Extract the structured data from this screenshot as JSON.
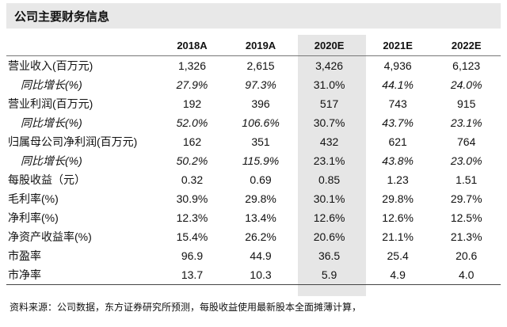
{
  "title": "公司主要财务信息",
  "columns": [
    "",
    "2018A",
    "2019A",
    "2020E",
    "2021E",
    "2022E"
  ],
  "rows": [
    {
      "label": "营业收入(百万元)",
      "values": [
        "1,326",
        "2,615",
        "3,426",
        "4,936",
        "6,123"
      ],
      "sub": false
    },
    {
      "label": "同比增长(%)",
      "values": [
        "27.9%",
        "97.3%",
        "31.0%",
        "44.1%",
        "24.0%"
      ],
      "sub": true
    },
    {
      "label": "营业利润(百万元)",
      "values": [
        "192",
        "396",
        "517",
        "743",
        "915"
      ],
      "sub": false
    },
    {
      "label": "同比增长(%)",
      "values": [
        "52.0%",
        "106.6%",
        "30.7%",
        "43.7%",
        "23.1%"
      ],
      "sub": true
    },
    {
      "label": "归属母公司净利润(百万元)",
      "values": [
        "162",
        "351",
        "432",
        "621",
        "764"
      ],
      "sub": false
    },
    {
      "label": "同比增长(%)",
      "values": [
        "50.2%",
        "115.9%",
        "23.1%",
        "43.8%",
        "23.0%"
      ],
      "sub": true
    },
    {
      "label": "每股收益（元）",
      "values": [
        "0.32",
        "0.69",
        "0.85",
        "1.23",
        "1.51"
      ],
      "sub": false
    },
    {
      "label": "毛利率(%)",
      "values": [
        "30.9%",
        "29.8%",
        "30.1%",
        "29.8%",
        "29.7%"
      ],
      "sub": false
    },
    {
      "label": "净利率(%)",
      "values": [
        "12.3%",
        "13.4%",
        "12.6%",
        "12.6%",
        "12.5%"
      ],
      "sub": false
    },
    {
      "label": "净资产收益率(%)",
      "values": [
        "15.4%",
        "26.2%",
        "20.6%",
        "21.1%",
        "21.3%"
      ],
      "sub": false
    },
    {
      "label": "市盈率",
      "values": [
        "96.9",
        "44.9",
        "36.5",
        "25.4",
        "20.6"
      ],
      "sub": false
    },
    {
      "label": "市净率",
      "values": [
        "13.7",
        "10.3",
        "5.9",
        "4.9",
        "4.0"
      ],
      "sub": false
    }
  ],
  "source": "资料来源：公司数据，东方证券研究所预测，每股收益使用最新股本全面摊薄计算，",
  "colors": {
    "title_bg": "#e8e8e8",
    "highlight_col": "#e6e6e6"
  }
}
